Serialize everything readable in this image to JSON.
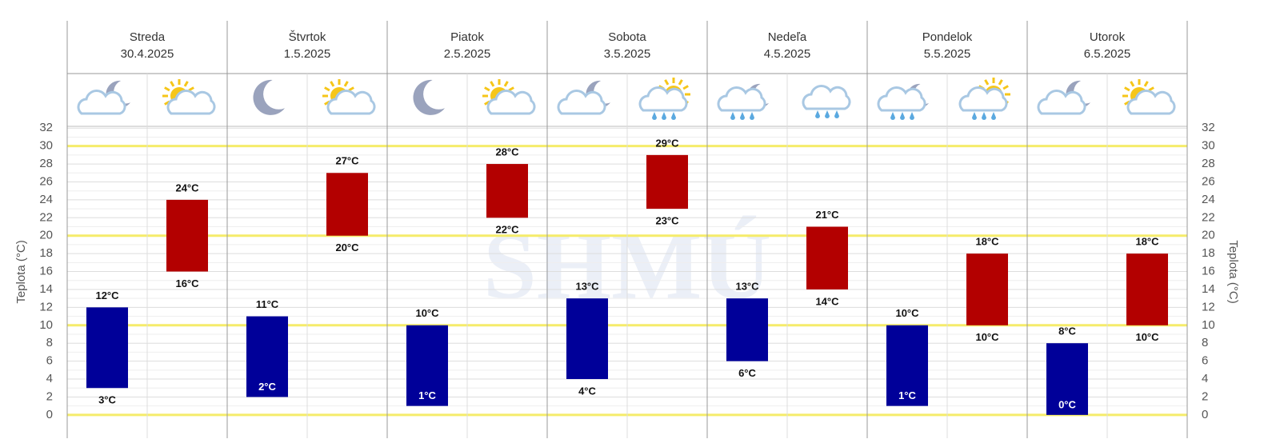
{
  "chart_data": {
    "type": "floating_bar",
    "y_label": "Teplota (°C)",
    "watermark": "SHMÚ",
    "categories": [
      "Streda",
      "Štvrtok",
      "Piatok",
      "Sobota",
      "Nedeľa",
      "Pondelok",
      "Utorok"
    ],
    "dates": [
      "30.4.2025",
      "1.5.2025",
      "2.5.2025",
      "3.5.2025",
      "4.5.2025",
      "5.5.2025",
      "6.5.2025"
    ],
    "series": [
      {
        "color": "#000099",
        "low": [
          3,
          2,
          1,
          4,
          6,
          1,
          0
        ],
        "high": [
          12,
          11,
          10,
          13,
          13,
          10,
          8
        ],
        "low_labels": [
          "3°C",
          "2°C",
          "1°C",
          "4°C",
          "6°C",
          "1°C",
          "0°C"
        ],
        "high_labels": [
          "12°C",
          "11°C",
          "10°C",
          "13°C",
          "13°C",
          "10°C",
          "8°C"
        ]
      },
      {
        "color": "#b30000",
        "low": [
          16,
          20,
          22,
          23,
          14,
          10,
          10
        ],
        "high": [
          24,
          27,
          28,
          29,
          21,
          18,
          18
        ],
        "low_labels": [
          "16°C",
          "20°C",
          "22°C",
          "23°C",
          "14°C",
          "10°C",
          "10°C"
        ],
        "high_labels": [
          "24°C",
          "27°C",
          "28°C",
          "29°C",
          "21°C",
          "18°C",
          "18°C"
        ]
      }
    ],
    "ylim": [
      -2.6,
      32.2
    ],
    "yticks": [
      0,
      2,
      4,
      6,
      8,
      10,
      12,
      14,
      16,
      18,
      20,
      22,
      24,
      26,
      28,
      30,
      32
    ],
    "grid": true
  }
}
